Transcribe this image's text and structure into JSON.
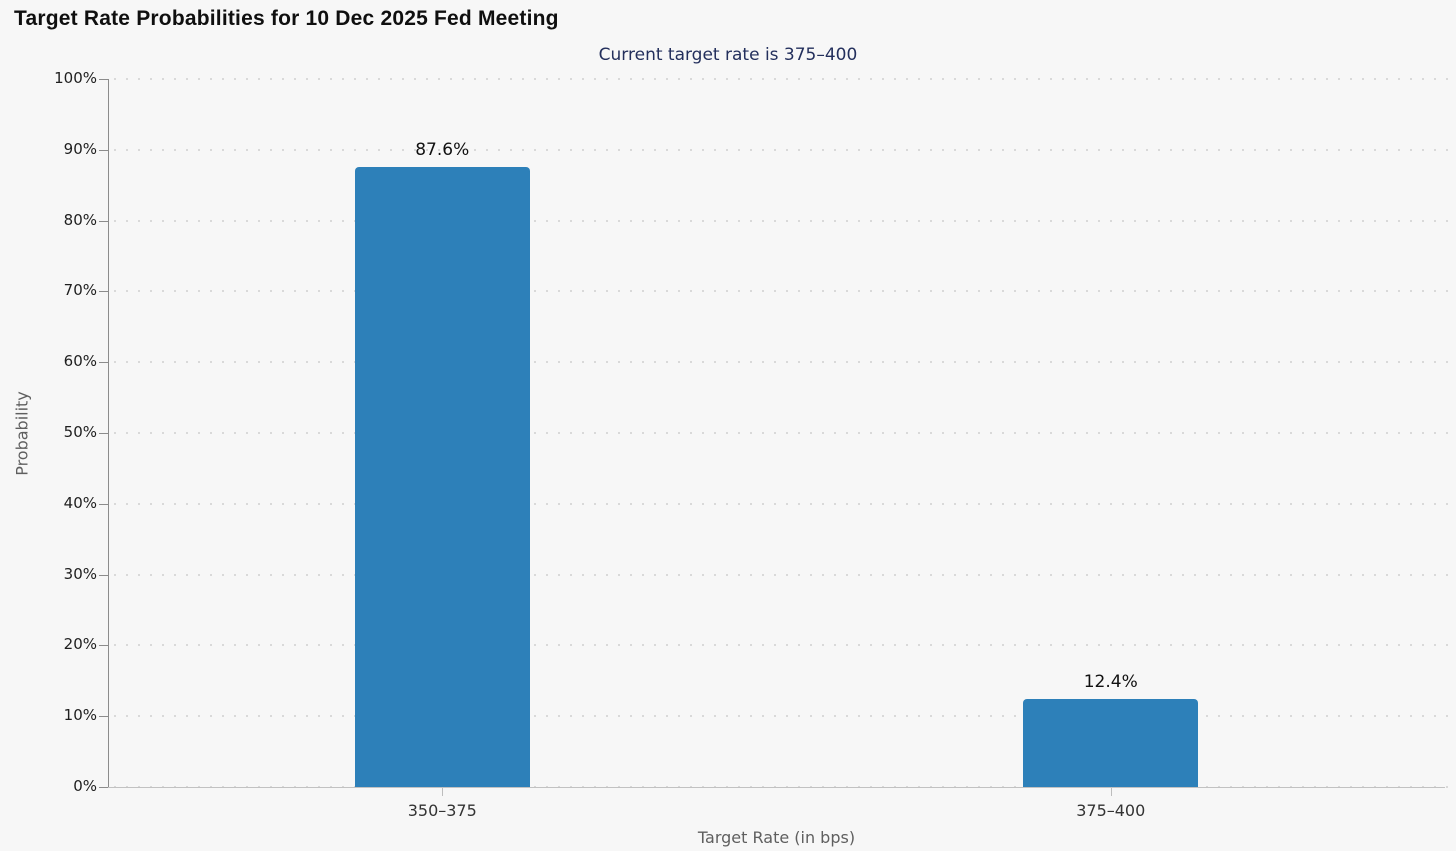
{
  "chart_data": {
    "type": "bar",
    "title": "Target Rate Probabilities for 10 Dec 2025 Fed Meeting",
    "subtitle": "Current target rate is 375–400",
    "categories": [
      "350–375",
      "375–400"
    ],
    "values": [
      87.6,
      12.4
    ],
    "value_labels": [
      "87.6%",
      "12.4%"
    ],
    "xlabel": "Target Rate (in bps)",
    "ylabel": "Probability",
    "ylim": [
      0,
      100
    ],
    "y_tick_step": 10,
    "y_tick_labels": [
      "0%",
      "10%",
      "20%",
      "30%",
      "40%",
      "50%",
      "60%",
      "70%",
      "80%",
      "90%",
      "100%"
    ],
    "grid": "horizontal-dotted",
    "legend": "none",
    "bar_color": "#2d80b9",
    "background_color": "#f7f7f7",
    "subtitle_color": "#232f5c"
  }
}
